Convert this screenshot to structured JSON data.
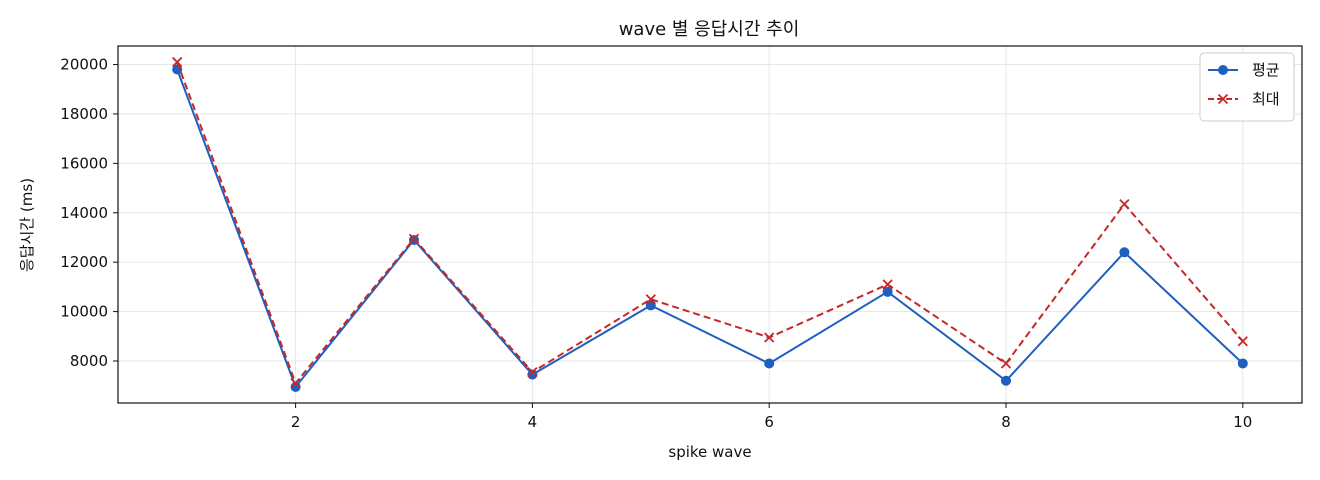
{
  "chart_data": {
    "type": "line",
    "title": "wave 별 응답시간 추이",
    "xlabel": "spike wave",
    "ylabel": "응답시간 (ms)",
    "x": [
      1,
      2,
      3,
      4,
      5,
      6,
      7,
      8,
      9,
      10
    ],
    "xlim": [
      0.5,
      10.5
    ],
    "ylim": [
      6300,
      20750
    ],
    "xticks": [
      2,
      4,
      6,
      8,
      10
    ],
    "yticks": [
      8000,
      10000,
      12000,
      14000,
      16000,
      18000,
      20000
    ],
    "grid": true,
    "legend_position": "top-right",
    "series": [
      {
        "name": "평균",
        "values": [
          19800,
          6950,
          12900,
          7450,
          10250,
          7900,
          10800,
          7200,
          12400,
          7900
        ],
        "color": "#1f5fbf",
        "line_style": "solid",
        "marker": "circle"
      },
      {
        "name": "최대",
        "values": [
          20100,
          7100,
          12950,
          7550,
          10500,
          8950,
          11100,
          7900,
          14350,
          8800
        ],
        "color": "#c62828",
        "line_style": "dashed",
        "marker": "x"
      }
    ]
  }
}
